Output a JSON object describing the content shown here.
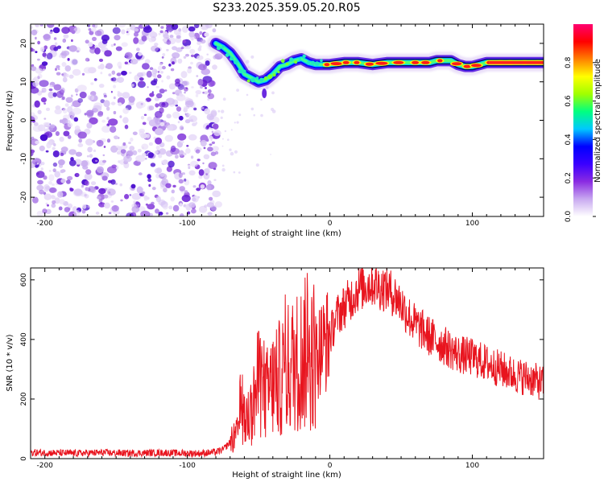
{
  "title": "S233.2025.359.05.20.R05",
  "chart_data": [
    {
      "type": "heatmap",
      "name": "spectrogram",
      "xlabel": "Height of straight line (km)",
      "ylabel": "Frequency (Hz)",
      "xlim": [
        -210,
        150
      ],
      "ylim": [
        -25,
        25
      ],
      "xticks": [
        -200,
        -100,
        0,
        100
      ],
      "yticks": [
        -20,
        -10,
        0,
        10,
        20
      ],
      "colorbar": {
        "label": "Normalized spectral amplitude",
        "range": [
          0,
          1
        ],
        "ticks": [
          0.0,
          0.2,
          0.4,
          0.6,
          0.8
        ],
        "tick_labels": [
          "0.0",
          "0.2",
          "0.4",
          "0.6",
          "0.8"
        ],
        "colormap": [
          "#ffffff",
          "#c8a8f0",
          "#8a2be2",
          "#3a00ff",
          "#0000ff",
          "#00c8ff",
          "#00ff80",
          "#a0ff00",
          "#ffff00",
          "#ff8000",
          "#ff0000",
          "#ff0070"
        ]
      },
      "noise_region_km": [
        -210,
        -78
      ],
      "signal_ridge": {
        "x": [
          -80,
          -75,
          -70,
          -65,
          -60,
          -55,
          -50,
          -45,
          -40,
          -35,
          -30,
          -25,
          -20,
          -15,
          -10,
          -5,
          0,
          10,
          20,
          30,
          40,
          50,
          60,
          70,
          75,
          80,
          85,
          90,
          95,
          100,
          110,
          120,
          130,
          140,
          150
        ],
        "y": [
          20,
          19,
          17.5,
          15,
          12,
          11,
          10,
          10.5,
          12,
          14,
          14.5,
          15.5,
          16,
          15,
          14.5,
          14.5,
          14.5,
          15,
          15,
          14.5,
          15,
          15,
          15,
          15,
          15.5,
          15.5,
          15.5,
          14.5,
          14,
          14,
          15,
          15,
          15,
          15,
          15
        ]
      }
    },
    {
      "type": "line",
      "name": "snr",
      "xlabel": "Height of straight line (km)",
      "ylabel": "SNR (10 * v/v)",
      "xlim": [
        -210,
        150
      ],
      "ylim": [
        0,
        640
      ],
      "xticks": [
        -200,
        -100,
        0,
        100
      ],
      "yticks": [
        0,
        200,
        400,
        600
      ],
      "color": "#e8141e",
      "series": [
        {
          "name": "SNR",
          "x": [
            -210,
            -200,
            -180,
            -160,
            -140,
            -120,
            -100,
            -90,
            -80,
            -75,
            -70,
            -65,
            -62,
            -60,
            -55,
            -50,
            -45,
            -40,
            -35,
            -30,
            -25,
            -20,
            -15,
            -10,
            -5,
            0,
            5,
            10,
            15,
            20,
            25,
            30,
            35,
            40,
            45,
            50,
            55,
            60,
            70,
            80,
            90,
            100,
            110,
            120,
            130,
            140,
            150
          ],
          "y": [
            20,
            20,
            18,
            20,
            18,
            20,
            18,
            18,
            22,
            30,
            55,
            80,
            200,
            120,
            160,
            260,
            210,
            250,
            270,
            300,
            320,
            340,
            360,
            350,
            380,
            410,
            480,
            510,
            540,
            570,
            580,
            590,
            575,
            570,
            550,
            520,
            480,
            450,
            410,
            380,
            350,
            340,
            320,
            300,
            280,
            270,
            250
          ]
        }
      ]
    }
  ]
}
